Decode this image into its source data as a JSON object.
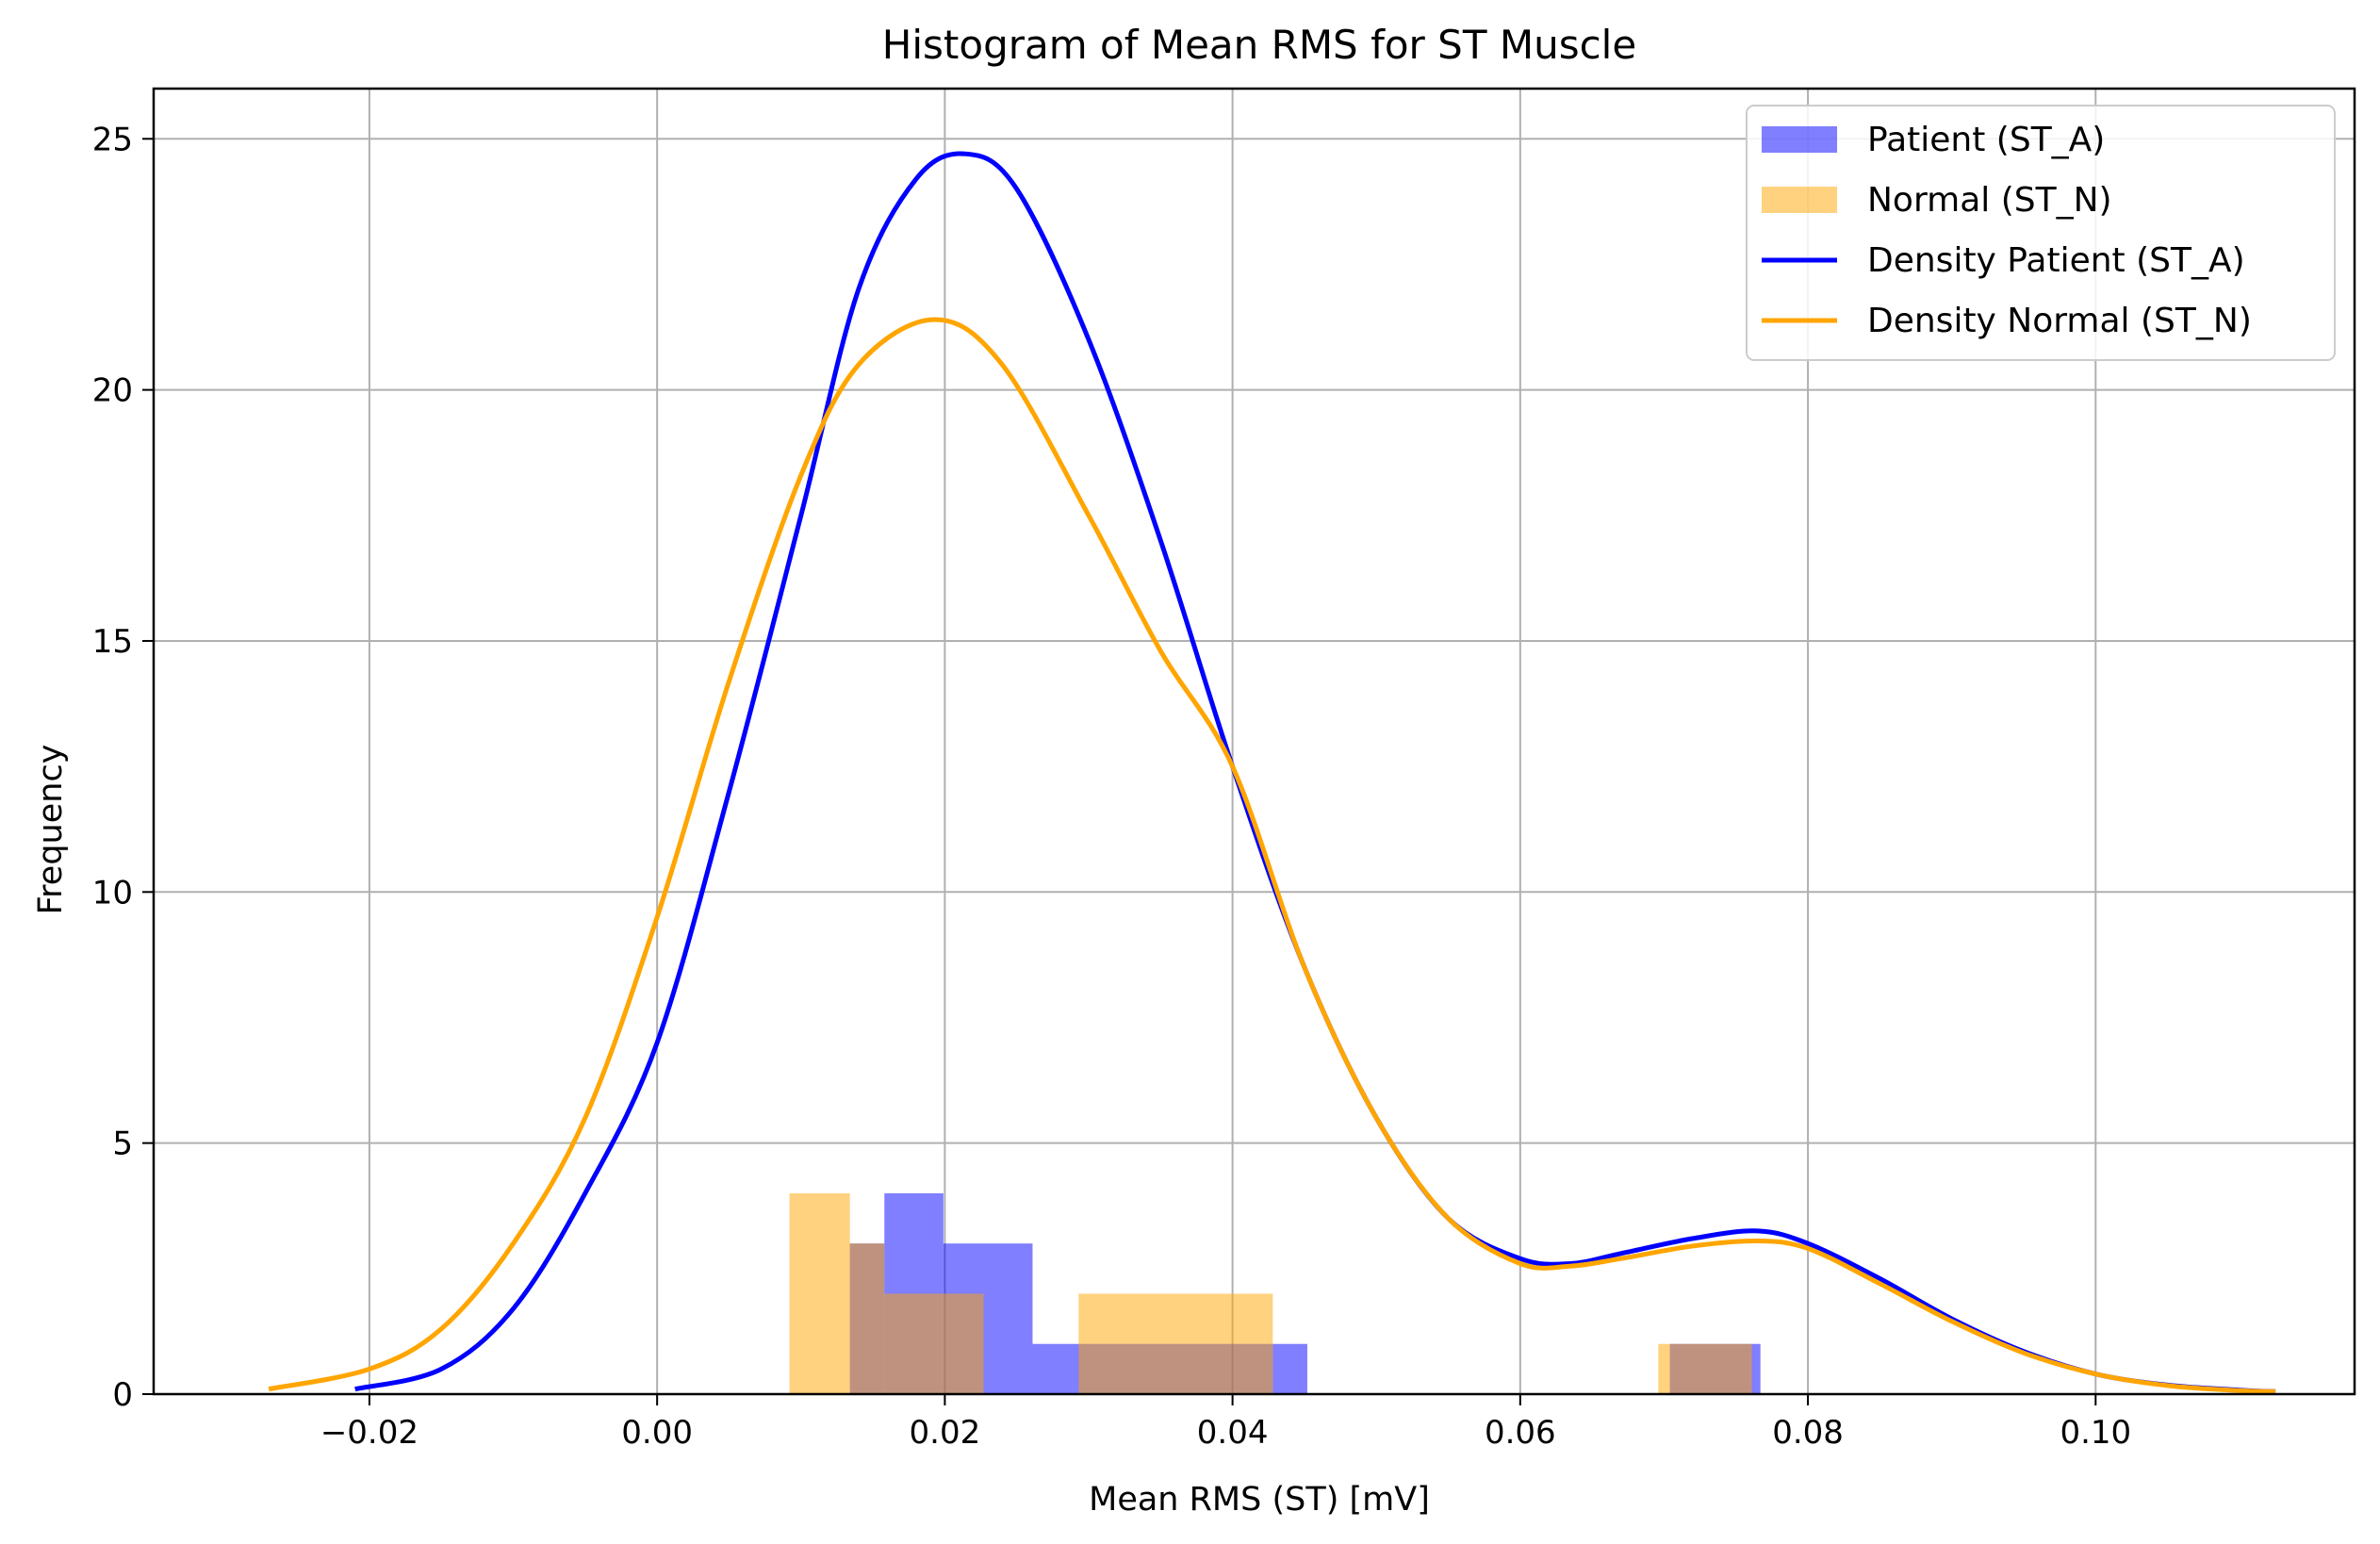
{
  "chart_data": {
    "type": "histogram",
    "title": "Histogram of Mean RMS for ST Muscle",
    "xlabel": "Mean RMS (ST) [mV]",
    "ylabel": "Frequency",
    "xlim": [
      -0.035,
      0.118
    ],
    "ylim": [
      0,
      26
    ],
    "xticks": [
      -0.02,
      0.0,
      0.02,
      0.04,
      0.06,
      0.08,
      0.1
    ],
    "xtick_labels": [
      "−0.02",
      "0.00",
      "0.02",
      "0.04",
      "0.06",
      "0.08",
      "0.10"
    ],
    "yticks": [
      0,
      5,
      10,
      15,
      20,
      25
    ],
    "ytick_labels": [
      "0",
      "5",
      "10",
      "15",
      "20",
      "25"
    ],
    "grid": true,
    "legend_position": "top-right",
    "colors": {
      "patient_bar": "#0000ff",
      "normal_bar": "#ffa500",
      "patient_line": "#0000ff",
      "normal_line": "#ffa500",
      "grid": "#b0b0b0"
    },
    "histograms": [
      {
        "name": "Patient (ST_A)",
        "opacity": 0.5,
        "bins": [
          {
            "x0": 0.0134,
            "x1": 0.0158,
            "count": 3
          },
          {
            "x0": 0.0158,
            "x1": 0.0199,
            "count": 4
          },
          {
            "x0": 0.0199,
            "x1": 0.0261,
            "count": 3
          },
          {
            "x0": 0.0261,
            "x1": 0.0428,
            "count": 1
          },
          {
            "x0": 0.0428,
            "x1": 0.0452,
            "count": 1
          },
          {
            "x0": 0.0704,
            "x1": 0.0767,
            "count": 1
          }
        ]
      },
      {
        "name": "Normal (ST_N)",
        "opacity": 0.5,
        "bins": [
          {
            "x0": 0.0092,
            "x1": 0.0134,
            "count": 4
          },
          {
            "x0": 0.0134,
            "x1": 0.0158,
            "count": 3
          },
          {
            "x0": 0.0158,
            "x1": 0.0227,
            "count": 2
          },
          {
            "x0": 0.0227,
            "x1": 0.0293,
            "count": 0
          },
          {
            "x0": 0.0293,
            "x1": 0.0428,
            "count": 2
          },
          {
            "x0": 0.0696,
            "x1": 0.0761,
            "count": 1
          }
        ]
      }
    ],
    "density_series": [
      {
        "name": "Density Patient (ST_A)",
        "x": [
          -0.021,
          -0.015,
          -0.01,
          -0.005,
          0.0,
          0.005,
          0.01,
          0.014,
          0.018,
          0.0215,
          0.025,
          0.03,
          0.035,
          0.04,
          0.045,
          0.05,
          0.055,
          0.06,
          0.0635,
          0.067,
          0.072,
          0.0765,
          0.08,
          0.085,
          0.09,
          0.095,
          0.1,
          0.105,
          0.11,
          0.1125
        ],
        "y": [
          0.1,
          0.5,
          1.7,
          4.0,
          7.0,
          12.0,
          17.5,
          22.0,
          24.2,
          24.7,
          24.0,
          21.0,
          17.0,
          12.5,
          8.5,
          5.5,
          3.5,
          2.7,
          2.6,
          2.8,
          3.1,
          3.25,
          3.0,
          2.3,
          1.5,
          0.85,
          0.4,
          0.18,
          0.08,
          0.05
        ]
      },
      {
        "name": "Density Normal (ST_N)",
        "x": [
          -0.027,
          -0.02,
          -0.015,
          -0.01,
          -0.005,
          0.0,
          0.005,
          0.01,
          0.014,
          0.0193,
          0.024,
          0.03,
          0.035,
          0.04,
          0.045,
          0.05,
          0.055,
          0.06,
          0.0635,
          0.067,
          0.072,
          0.0765,
          0.08,
          0.085,
          0.09,
          0.095,
          0.1,
          0.105,
          0.11,
          0.1125
        ],
        "y": [
          0.1,
          0.5,
          1.3,
          3.0,
          5.5,
          9.5,
          14.2,
          18.3,
          20.5,
          21.4,
          20.5,
          17.5,
          14.8,
          12.5,
          8.5,
          5.5,
          3.5,
          2.6,
          2.55,
          2.7,
          2.95,
          3.05,
          2.9,
          2.2,
          1.45,
          0.82,
          0.4,
          0.17,
          0.07,
          0.05
        ]
      }
    ]
  }
}
